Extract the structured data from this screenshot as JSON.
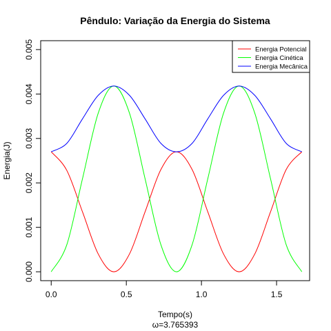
{
  "chart_data": {
    "type": "line",
    "title": "Pêndulo: Variação da Energia do Sistema",
    "xlabel": "Tempo(s)",
    "xlabel_sub": "ω=3.765393",
    "ylabel": "Energia(J)",
    "xlim": [
      -0.07,
      1.72
    ],
    "ylim": [
      -0.0002,
      0.0052
    ],
    "x_ticks": [
      0.0,
      0.5,
      1.0,
      1.5
    ],
    "x_tick_labels": [
      "0.0",
      "0.5",
      "1.0",
      "1.5"
    ],
    "y_ticks": [
      0.0,
      0.001,
      0.002,
      0.003,
      0.004,
      0.005
    ],
    "y_tick_labels": [
      "0.000",
      "0.001",
      "0.002",
      "0.003",
      "0.004",
      "0.005"
    ],
    "grid": false,
    "legend_position": "top-right",
    "series": [
      {
        "name": "Energia Potencial",
        "color": "#ff0000",
        "x": [
          0.0,
          0.104,
          0.208,
          0.313,
          0.417,
          0.521,
          0.625,
          0.73,
          0.834,
          0.938,
          1.042,
          1.147,
          1.251,
          1.355,
          1.46,
          1.564,
          1.668
        ],
        "y": [
          0.0027,
          0.00228,
          0.00135,
          0.0004,
          0.0,
          0.0004,
          0.00135,
          0.0023,
          0.0027,
          0.0023,
          0.00135,
          0.0004,
          0.0,
          0.0004,
          0.00135,
          0.0023,
          0.0027
        ]
      },
      {
        "name": "Energia Cinética",
        "color": "#00ff00",
        "x": [
          0.0,
          0.104,
          0.208,
          0.313,
          0.417,
          0.521,
          0.625,
          0.73,
          0.834,
          0.938,
          1.042,
          1.147,
          1.251,
          1.355,
          1.46,
          1.564,
          1.668
        ],
        "y": [
          0.0,
          0.00061,
          0.00209,
          0.00357,
          0.00418,
          0.00357,
          0.00209,
          0.00061,
          0.0,
          0.00061,
          0.00209,
          0.00357,
          0.00418,
          0.00357,
          0.00209,
          0.00061,
          0.0
        ]
      },
      {
        "name": "Energia Mecânica",
        "color": "#0000ff",
        "x": [
          0.0,
          0.104,
          0.208,
          0.313,
          0.417,
          0.521,
          0.625,
          0.73,
          0.834,
          0.938,
          1.042,
          1.147,
          1.251,
          1.355,
          1.46,
          1.564,
          1.668
        ],
        "y": [
          0.0027,
          0.00289,
          0.00344,
          0.00397,
          0.00418,
          0.00397,
          0.00344,
          0.00289,
          0.0027,
          0.00289,
          0.00344,
          0.00397,
          0.00418,
          0.00397,
          0.00344,
          0.00289,
          0.0027
        ]
      }
    ]
  }
}
